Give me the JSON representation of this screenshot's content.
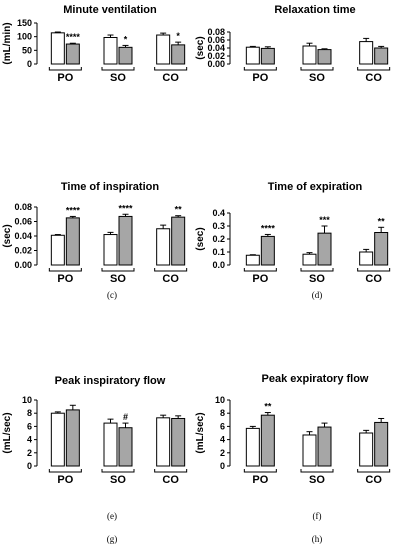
{
  "chart_data": [
    {
      "label": "",
      "type": "bar",
      "title": "Minute ventilation",
      "ylabel": "(mL/min)",
      "ylim": [
        0,
        150
      ],
      "yticks": [
        "0",
        "50",
        "100",
        "150"
      ],
      "categories": [
        "PO",
        "SO",
        "CO"
      ],
      "series": [
        {
          "fill": "#ffffff",
          "values": [
            114,
            97,
            106
          ],
          "errors": [
            3,
            9,
            7
          ]
        },
        {
          "fill": "#a6a6a6",
          "values": [
            73,
            61,
            70
          ],
          "errors": [
            3,
            7,
            10
          ]
        }
      ],
      "annotations": [
        "****",
        "*",
        "*"
      ]
    },
    {
      "label": "",
      "type": "bar",
      "title": "Relaxation time",
      "ylabel": "(sec)",
      "ylim": [
        0,
        0.08
      ],
      "yticks": [
        "0.00",
        "0.02",
        "0.04",
        "0.06",
        "0.08"
      ],
      "categories": [
        "PO",
        "SO",
        "CO"
      ],
      "series": [
        {
          "fill": "#ffffff",
          "values": [
            0.042,
            0.045,
            0.056
          ],
          "errors": [
            0.002,
            0.007,
            0.008
          ]
        },
        {
          "fill": "#a6a6a6",
          "values": [
            0.039,
            0.036,
            0.04
          ],
          "errors": [
            0.004,
            0.002,
            0.004
          ]
        }
      ],
      "annotations": [
        "",
        "",
        ""
      ]
    },
    {
      "label": "(c)",
      "type": "bar",
      "title": "Time of inspiration",
      "ylabel": "(sec)",
      "ylim": [
        0,
        0.08
      ],
      "yticks": [
        "0.00",
        "0.02",
        "0.04",
        "0.06",
        "0.08"
      ],
      "categories": [
        "PO",
        "SO",
        "CO"
      ],
      "series": [
        {
          "fill": "#ffffff",
          "values": [
            0.041,
            0.042,
            0.05
          ],
          "errors": [
            0.001,
            0.003,
            0.005
          ]
        },
        {
          "fill": "#a6a6a6",
          "values": [
            0.065,
            0.067,
            0.066
          ],
          "errors": [
            0.002,
            0.003,
            0.002
          ]
        }
      ],
      "annotations": [
        "****",
        "****",
        "**"
      ]
    },
    {
      "label": "(d)",
      "type": "bar",
      "title": "Time of expiration",
      "ylabel": "(sec)",
      "ylim": [
        0,
        0.4
      ],
      "yticks": [
        "0.0",
        "0.1",
        "0.2",
        "0.3",
        "0.4"
      ],
      "categories": [
        "PO",
        "SO",
        "CO"
      ],
      "series": [
        {
          "fill": "#ffffff",
          "values": [
            0.075,
            0.083,
            0.1
          ],
          "errors": [
            0.004,
            0.012,
            0.02
          ]
        },
        {
          "fill": "#a6a6a6",
          "values": [
            0.22,
            0.245,
            0.25
          ],
          "errors": [
            0.015,
            0.055,
            0.04
          ]
        }
      ],
      "annotations": [
        "****",
        "***",
        "**"
      ]
    },
    {
      "label": "(e)",
      "type": "bar",
      "title": "Peak inspiratory flow",
      "ylabel": "(mL/sec)",
      "ylim": [
        0,
        10
      ],
      "yticks": [
        "0",
        "2",
        "4",
        "6",
        "8",
        "10"
      ],
      "categories": [
        "PO",
        "SO",
        "CO"
      ],
      "series": [
        {
          "fill": "#ffffff",
          "values": [
            8.0,
            6.5,
            7.3
          ],
          "errors": [
            0.2,
            0.6,
            0.4
          ]
        },
        {
          "fill": "#a6a6a6",
          "values": [
            8.5,
            5.8,
            7.2
          ],
          "errors": [
            0.7,
            0.7,
            0.4
          ]
        }
      ],
      "annotations": [
        "",
        "#",
        ""
      ]
    },
    {
      "label": "(f)",
      "type": "bar",
      "title": "Peak expiratory flow",
      "ylabel": "(mL/sec)",
      "ylim": [
        0,
        10
      ],
      "yticks": [
        "0",
        "2",
        "4",
        "6",
        "8",
        "10"
      ],
      "categories": [
        "PO",
        "SO",
        "CO"
      ],
      "series": [
        {
          "fill": "#ffffff",
          "values": [
            5.7,
            4.7,
            5.0
          ],
          "errors": [
            0.3,
            0.5,
            0.4
          ]
        },
        {
          "fill": "#a6a6a6",
          "values": [
            7.7,
            5.9,
            6.6
          ],
          "errors": [
            0.4,
            0.6,
            0.6
          ]
        }
      ],
      "annotations": [
        "**",
        "",
        ""
      ]
    }
  ],
  "panel_labels_bottom": [
    "(g)",
    "(h)"
  ]
}
